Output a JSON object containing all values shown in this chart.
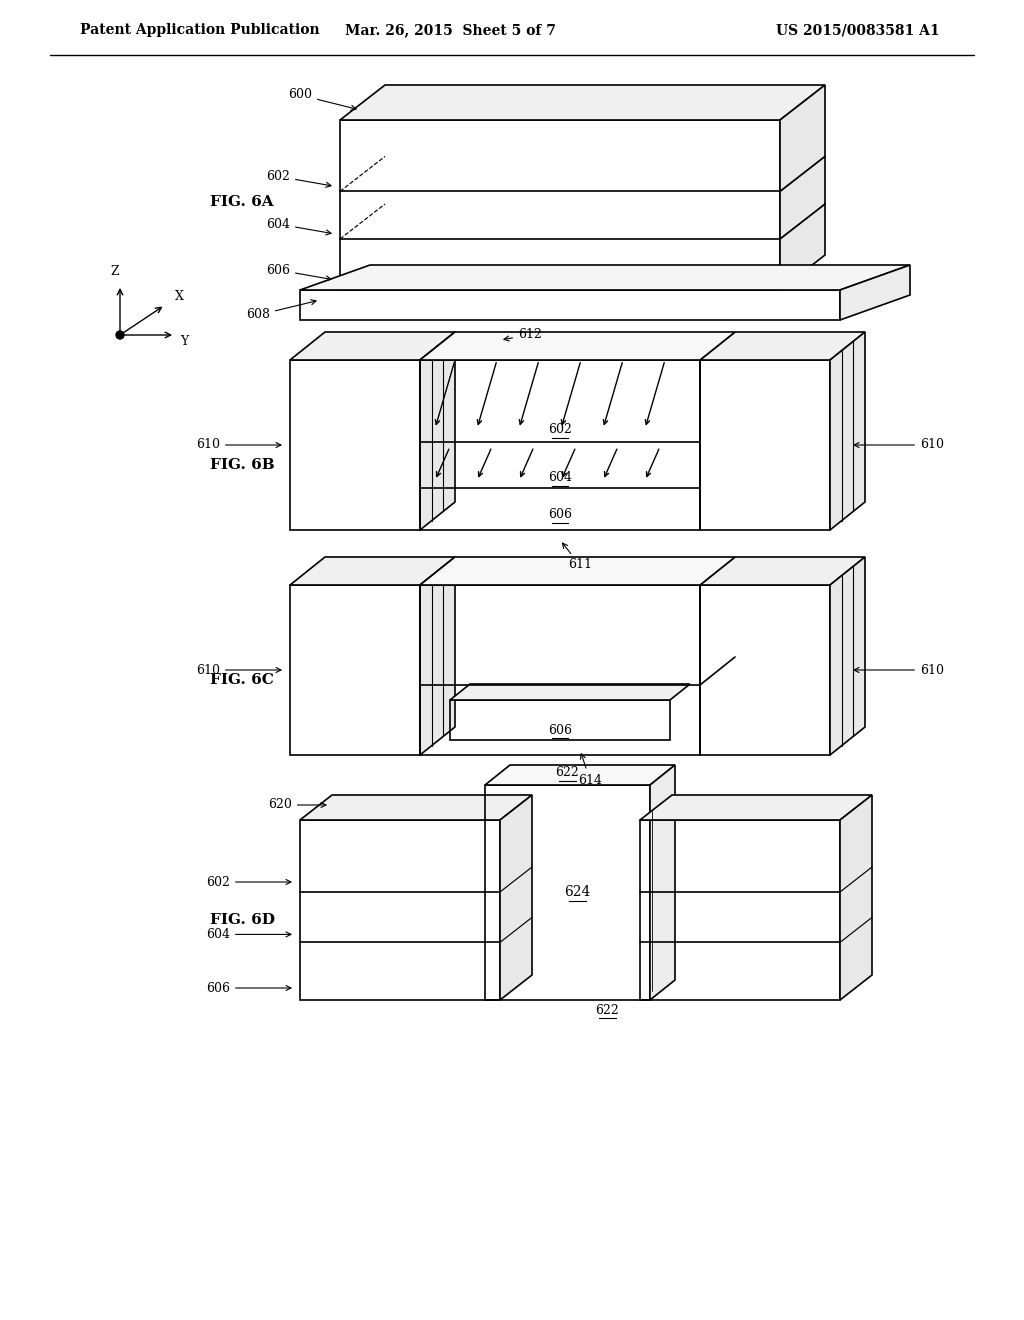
{
  "header_left": "Patent Application Publication",
  "header_mid": "Mar. 26, 2015  Sheet 5 of 7",
  "header_right": "US 2015/0083581 A1",
  "bg_color": "#ffffff",
  "line_color": "#000000",
  "fig_labels": [
    "FIG. 6A",
    "FIG. 6B",
    "FIG. 6C",
    "FIG. 6D"
  ]
}
